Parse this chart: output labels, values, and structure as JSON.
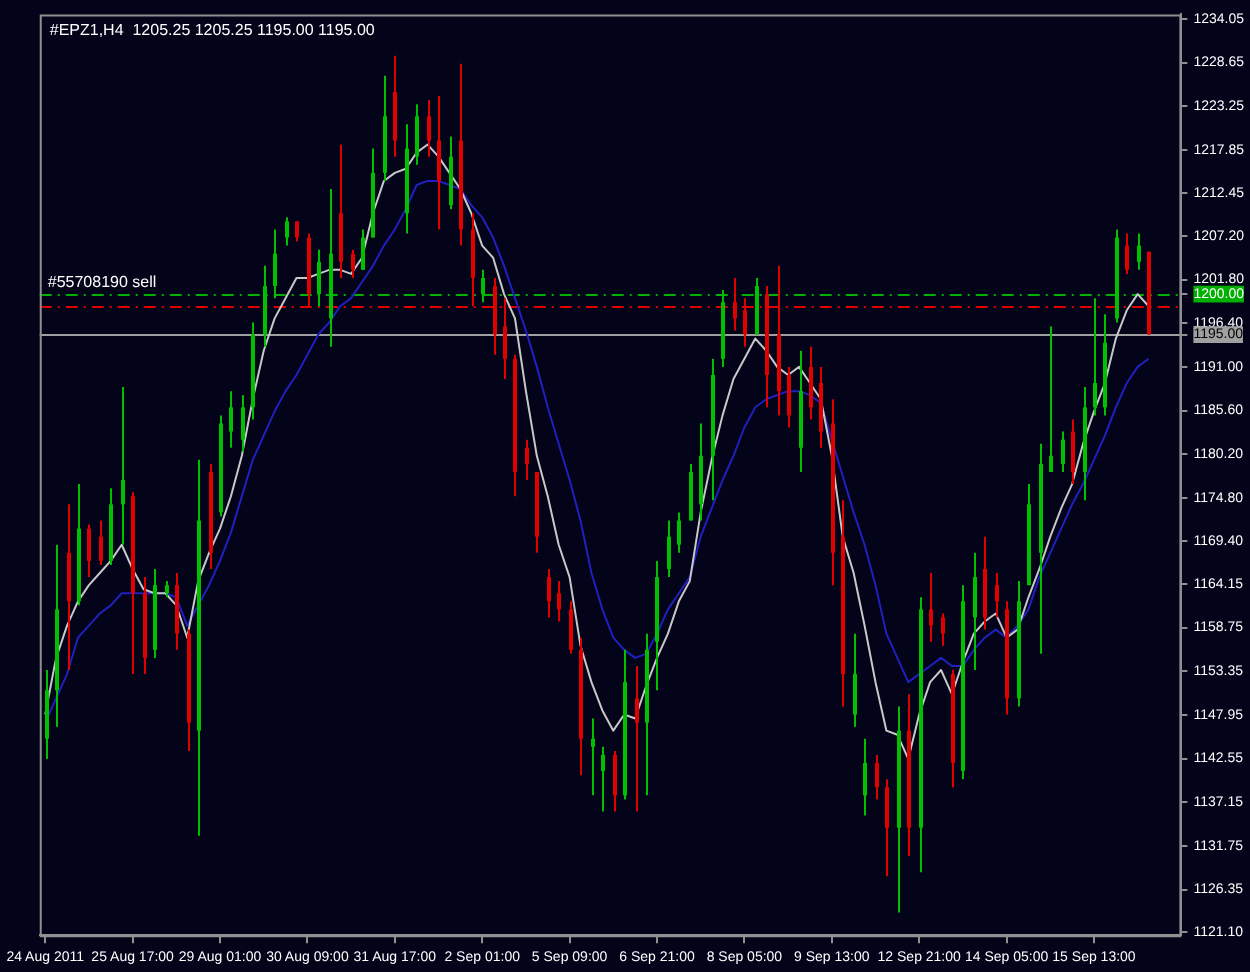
{
  "chart_data": {
    "type": "candlestick",
    "title": "#EPZ1,H4  1205.25 1205.25 1195.00 1195.00",
    "categories": [
      "24 Aug 2011",
      null,
      null,
      null,
      null,
      null,
      null,
      null,
      "25 Aug 17:00",
      null,
      null,
      null,
      null,
      null,
      null,
      null,
      "29 Aug 01:00",
      null,
      null,
      null,
      null,
      null,
      null,
      null,
      "30 Aug 09:00",
      null,
      null,
      null,
      null,
      null,
      null,
      null,
      "31 Aug 17:00",
      null,
      null,
      null,
      null,
      null,
      null,
      null,
      "2 Sep 01:00",
      null,
      null,
      null,
      null,
      null,
      null,
      null,
      "5 Sep 09:00",
      null,
      null,
      null,
      null,
      null,
      null,
      null,
      "6 Sep 21:00",
      null,
      null,
      null,
      null,
      null,
      null,
      null,
      "8 Sep 05:00",
      null,
      null,
      null,
      null,
      null,
      null,
      null,
      "9 Sep 13:00",
      null,
      null,
      null,
      null,
      null,
      null,
      null,
      "12 Sep 21:00",
      null,
      null,
      null,
      null,
      null,
      null,
      null,
      "14 Sep 05:00",
      null,
      null,
      null,
      null,
      null,
      null,
      null,
      "15 Sep 13:00",
      null,
      null,
      null,
      null,
      null
    ],
    "ohlc": [
      [
        1145,
        1153.5,
        1142.5,
        1151
      ],
      [
        1151,
        1169,
        1146.5,
        1161
      ],
      [
        1168,
        1174,
        1153.5,
        1162
      ],
      [
        1162,
        1176.5,
        1161.5,
        1171
      ],
      [
        1171,
        1171.5,
        1165,
        1167
      ],
      [
        1170,
        1172,
        1166.5,
        1167
      ],
      [
        1167,
        1176,
        1166.5,
        1174
      ],
      [
        1174,
        1188.5,
        1169,
        1177
      ],
      [
        1175,
        1175.5,
        1153,
        1163
      ],
      [
        1163,
        1165,
        1153,
        1155
      ],
      [
        1156,
        1166,
        1155,
        1164
      ],
      [
        1163,
        1164.5,
        1162.5,
        1164
      ],
      [
        1164,
        1165.5,
        1156,
        1158
      ],
      [
        1158,
        1158.5,
        1143.5,
        1147
      ],
      [
        1146,
        1179.5,
        1133,
        1172
      ],
      [
        1178,
        1179,
        1166,
        1168
      ],
      [
        1173,
        1185,
        1172.5,
        1184
      ],
      [
        1183,
        1188,
        1181,
        1186
      ],
      [
        1182,
        1187.5,
        1180.5,
        1186
      ],
      [
        1186,
        1196.5,
        1184.5,
        1195
      ],
      [
        1195,
        1203.5,
        1193.5,
        1201
      ],
      [
        1201,
        1208,
        1199.5,
        1205
      ],
      [
        1207,
        1209.5,
        1206,
        1209
      ],
      [
        1209,
        1209,
        1206.5,
        1207
      ],
      [
        1207,
        1207.5,
        1198.5,
        1200
      ],
      [
        1200,
        1205.5,
        1198.5,
        1204
      ],
      [
        1197,
        1213,
        1193.5,
        1205
      ],
      [
        1210,
        1218.5,
        1202,
        1204
      ],
      [
        1205,
        1205.5,
        1202,
        1203
      ],
      [
        1203,
        1208,
        1203,
        1207
      ],
      [
        1207,
        1218,
        1207,
        1215
      ],
      [
        1215,
        1227,
        1214,
        1222
      ],
      [
        1225,
        1229.5,
        1217,
        1219
      ],
      [
        1210,
        1221,
        1207.5,
        1218
      ],
      [
        1217,
        1223.5,
        1216,
        1222
      ],
      [
        1222,
        1224,
        1217,
        1219
      ],
      [
        1219,
        1224.5,
        1208,
        1214
      ],
      [
        1211,
        1219.5,
        1210.5,
        1217
      ],
      [
        1219,
        1228.5,
        1206,
        1208
      ],
      [
        1208,
        1210,
        1198.5,
        1202
      ],
      [
        1200,
        1203,
        1199,
        1202
      ],
      [
        1201,
        1202,
        1192.5,
        1195
      ],
      [
        1196,
        1199.5,
        1189.5,
        1192
      ],
      [
        1192,
        1192.5,
        1175,
        1178
      ],
      [
        1181,
        1182,
        1177,
        1179
      ],
      [
        1178,
        1178,
        1168,
        1170
      ],
      [
        1165,
        1166,
        1160,
        1162
      ],
      [
        1163,
        1164.5,
        1159.5,
        1161
      ],
      [
        1161,
        1162,
        1155.5,
        1156
      ],
      [
        1156,
        1157.5,
        1140.5,
        1145
      ],
      [
        1144,
        1147.5,
        1138,
        1145
      ],
      [
        1141,
        1144,
        1136,
        1143
      ],
      [
        1143,
        1143.5,
        1136,
        1138
      ],
      [
        1138,
        1156,
        1137.5,
        1152
      ],
      [
        1150,
        1154,
        1136,
        1147
      ],
      [
        1147,
        1158,
        1138,
        1156
      ],
      [
        1157,
        1167,
        1151,
        1165
      ],
      [
        1166,
        1172,
        1165,
        1170
      ],
      [
        1169,
        1173,
        1168,
        1172
      ],
      [
        1172,
        1179,
        1172,
        1178
      ],
      [
        1174,
        1184,
        1172,
        1180
      ],
      [
        1180,
        1192,
        1174.5,
        1190
      ],
      [
        1192,
        1200.5,
        1191,
        1199
      ],
      [
        1199,
        1202,
        1195.5,
        1197
      ],
      [
        1198,
        1199.5,
        1193.5,
        1195
      ],
      [
        1195,
        1202,
        1195,
        1201
      ],
      [
        1200,
        1201,
        1186,
        1190
      ],
      [
        1195,
        1203.5,
        1185,
        1188
      ],
      [
        1190,
        1191,
        1183.5,
        1185
      ],
      [
        1181,
        1193,
        1178,
        1188
      ],
      [
        1191,
        1193.5,
        1184.5,
        1186
      ],
      [
        1189,
        1191,
        1181,
        1183
      ],
      [
        1184,
        1187,
        1164,
        1168
      ],
      [
        1170,
        1174.5,
        1149,
        1153
      ],
      [
        1148,
        1158,
        1146.5,
        1153
      ],
      [
        1138,
        1145,
        1135.5,
        1142
      ],
      [
        1142,
        1143,
        1137.5,
        1139
      ],
      [
        1139,
        1140,
        1128,
        1134
      ],
      [
        1134,
        1149,
        1123.5,
        1146
      ],
      [
        1146,
        1150.5,
        1130.5,
        1134
      ],
      [
        1134,
        1162.5,
        1128.5,
        1161
      ],
      [
        1161,
        1165.5,
        1157,
        1159
      ],
      [
        1160,
        1160.5,
        1156.5,
        1158
      ],
      [
        1153,
        1153.5,
        1139,
        1142
      ],
      [
        1141,
        1164,
        1140,
        1162
      ],
      [
        1160,
        1168,
        1153.5,
        1165
      ],
      [
        1166,
        1170,
        1158.5,
        1160
      ],
      [
        1164,
        1165.5,
        1160,
        1162
      ],
      [
        1161,
        1162,
        1148,
        1150
      ],
      [
        1150,
        1164.5,
        1149,
        1162
      ],
      [
        1164,
        1176.5,
        1164,
        1174
      ],
      [
        1168,
        1181.5,
        1155.5,
        1179
      ],
      [
        1178,
        1196,
        1178,
        1180
      ],
      [
        1179,
        1183,
        1178,
        1182
      ],
      [
        1183,
        1184.5,
        1176.5,
        1178
      ],
      [
        1178,
        1188.5,
        1174.5,
        1186
      ],
      [
        1186,
        1199.5,
        1185,
        1189
      ],
      [
        1186,
        1197.5,
        1185,
        1194
      ],
      [
        1197,
        1208,
        1196.5,
        1207
      ],
      [
        1206,
        1207.5,
        1202.5,
        1203
      ],
      [
        1204,
        1207.5,
        1203,
        1206
      ],
      [
        1205.25,
        1205.25,
        1195,
        1195
      ]
    ],
    "colors": [
      "#00c000",
      "#00c000",
      "#e00000",
      "#00c000",
      "#e00000",
      "#e00000",
      "#00c000",
      "#00c000",
      "#e00000",
      "#e00000",
      "#00c000",
      "#00c000",
      "#e00000",
      "#e00000",
      "#00c000",
      "#e00000",
      "#00c000",
      "#00c000",
      "#00c000",
      "#00c000",
      "#00c000",
      "#00c000",
      "#00c000",
      "#e00000",
      "#e00000",
      "#00c000",
      "#00c000",
      "#e00000",
      "#e00000",
      "#00c000",
      "#00c000",
      "#00c000",
      "#e00000",
      "#00c000",
      "#00c000",
      "#e00000",
      "#e00000",
      "#00c000",
      "#e00000",
      "#e00000",
      "#00c000",
      "#e00000",
      "#e00000",
      "#e00000",
      "#e00000",
      "#e00000",
      "#e00000",
      "#e00000",
      "#e00000",
      "#e00000",
      "#00c000",
      "#00c000",
      "#e00000",
      "#00c000",
      "#e00000",
      "#00c000",
      "#00c000",
      "#00c000",
      "#00c000",
      "#00c000",
      "#00c000",
      "#00c000",
      "#00c000",
      "#e00000",
      "#e00000",
      "#00c000",
      "#e00000",
      "#e00000",
      "#e00000",
      "#00c000",
      "#e00000",
      "#e00000",
      "#e00000",
      "#e00000",
      "#00c000",
      "#00c000",
      "#e00000",
      "#e00000",
      "#00c000",
      "#e00000",
      "#00c000",
      "#e00000",
      "#e00000",
      "#e00000",
      "#00c000",
      "#00c000",
      "#e00000",
      "#e00000",
      "#e00000",
      "#00c000",
      "#00c000",
      "#00c000",
      "#00c000",
      "#00c000",
      "#e00000",
      "#00c000",
      "#00c000",
      "#00c000",
      "#00c000",
      "#e00000",
      "#00c000",
      "#e00000"
    ],
    "series": [
      {
        "type": "line",
        "color": "#c8c8c8",
        "values": [
          1148,
          1155,
          1159,
          1162,
          1164,
          1165.5,
          1167,
          1169,
          1166,
          1163.5,
          1163,
          1163,
          1161.5,
          1157.5,
          1164.5,
          1168,
          1171,
          1175,
          1180,
          1187,
          1193,
          1197,
          1199.5,
          1202,
          1202,
          1202.5,
          1203,
          1203,
          1202.5,
          1204.5,
          1210,
          1214,
          1215,
          1215.5,
          1217.5,
          1218.5,
          1217,
          1215,
          1213,
          1210,
          1206,
          1204.5,
          1200,
          1197,
          1188,
          1180,
          1175,
          1169,
          1165,
          1156.5,
          1152,
          1148.5,
          1146,
          1148,
          1147.5,
          1151.5,
          1155,
          1158,
          1162,
          1164.5,
          1173,
          1179.5,
          1185,
          1189.5,
          1192,
          1194.5,
          1193,
          1191,
          1190,
          1191,
          1189,
          1187,
          1180,
          1170,
          1165.5,
          1159,
          1152,
          1146,
          1145.5,
          1142.5,
          1148,
          1152,
          1153.5,
          1150.5,
          1154.5,
          1158,
          1159.5,
          1160.5,
          1157.5,
          1158.5,
          1162.5,
          1166,
          1170,
          1173.5,
          1176.5,
          1181.5,
          1185.5,
          1189,
          1194.5,
          1198,
          1200,
          1198.5
        ]
      },
      {
        "type": "line",
        "color": "#2020c0",
        "values": [
          1147,
          1150,
          1153,
          1157.5,
          1159,
          1160.5,
          1161.5,
          1163,
          1163,
          1163,
          1163,
          1163,
          1162.5,
          1159,
          1161.5,
          1164,
          1167,
          1170.5,
          1175,
          1179.5,
          1182.5,
          1185.5,
          1188,
          1190,
          1192.5,
          1195,
          1196.5,
          1198.5,
          1199.5,
          1201.5,
          1203.5,
          1206,
          1208,
          1210.5,
          1213.5,
          1214,
          1214,
          1213.5,
          1213,
          1211,
          1209.5,
          1207,
          1203.5,
          1199.5,
          1195.5,
          1191,
          1186,
          1181.5,
          1177,
          1172,
          1165.5,
          1161,
          1157.5,
          1156,
          1155,
          1155.5,
          1158,
          1161,
          1163,
          1165,
          1170,
          1173.5,
          1177,
          1180,
          1183.5,
          1186,
          1187,
          1187.5,
          1188,
          1188,
          1187.5,
          1186.5,
          1182,
          1177.5,
          1173,
          1169,
          1164,
          1158,
          1155,
          1152,
          1153,
          1154,
          1155,
          1154,
          1154,
          1156,
          1157.5,
          1158.5,
          1157.5,
          1159,
          1161,
          1165,
          1168,
          1171,
          1174,
          1176.5,
          1179.5,
          1182.5,
          1186,
          1189,
          1191,
          1192
        ]
      }
    ],
    "ylim": [
      1120.7,
      1234.6
    ],
    "yticks": [
      1234.05,
      1228.65,
      1223.25,
      1217.85,
      1212.45,
      {
        "value": 1207.2,
        "label": "1207.20"
      },
      {
        "value": 1201.8,
        "label": "1201.80"
      },
      {
        "value": 1200,
        "label": "1200.00"
      },
      {
        "value": 1196.4,
        "label": "1196.40"
      },
      {
        "value": 1195,
        "label": "1195.00"
      },
      {
        "value": 1191,
        "label": "1191.00"
      },
      {
        "value": 1185.6,
        "label": "1185.60"
      },
      {
        "value": 1180.2,
        "label": "1180.20"
      },
      {
        "value": 1174.8,
        "label": "1174.80"
      },
      {
        "value": 1169.4,
        "label": "1169.40"
      },
      1164.15,
      1158.75,
      1153.35,
      1147.95,
      1142.55,
      1137.15,
      1131.75,
      1126.35,
      {
        "value": 1121.1,
        "label": "1121.10"
      }
    ],
    "ref_lines": [
      {
        "axis": "y",
        "value": 1200,
        "label": "#55708190 sell",
        "color": "#00b000",
        "line_style": "dashed"
      },
      {
        "axis": "y",
        "value": 1198.5,
        "label": null,
        "color": "#e00000",
        "line_style": "dashed"
      },
      {
        "axis": "y",
        "value": 1195,
        "label": null,
        "color": "#a0a0a0",
        "line_style": "solid"
      }
    ],
    "marker": "none"
  }
}
